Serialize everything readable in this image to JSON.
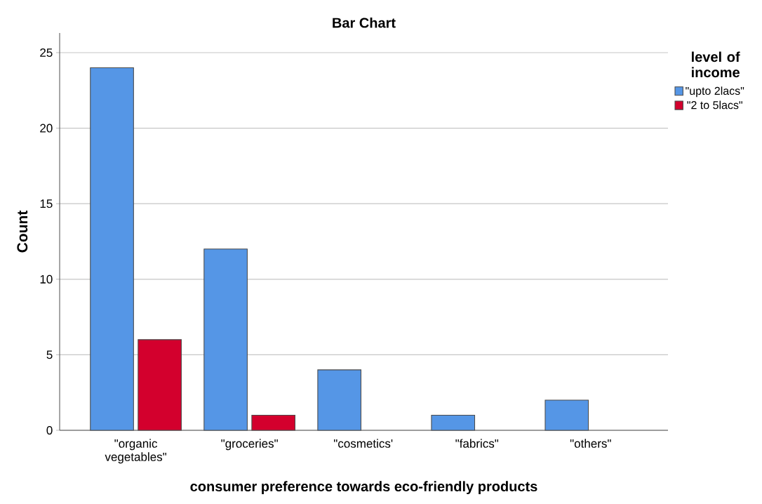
{
  "chart_data": {
    "type": "bar",
    "title": "Bar Chart",
    "xlabel": "consumer preference towards eco-friendly products",
    "ylabel": "Count",
    "categories": [
      "\"organic vegetables\"",
      "\"groceries\"",
      "\"cosmetics'",
      "\"fabrics\"",
      "\"others\""
    ],
    "series": [
      {
        "name": "\"upto 2lacs\"",
        "color": "#5596e6",
        "values": [
          24,
          12,
          4,
          1,
          2
        ]
      },
      {
        "name": "\"2 to 5lacs\"",
        "color": "#d3002d",
        "values": [
          6,
          1,
          null,
          null,
          null
        ]
      }
    ],
    "ylim": [
      0,
      26.3
    ],
    "yticks": [
      0,
      5,
      10,
      15,
      20,
      25
    ],
    "grid": "y",
    "legend": "top right",
    "legend_title": "level of income"
  }
}
